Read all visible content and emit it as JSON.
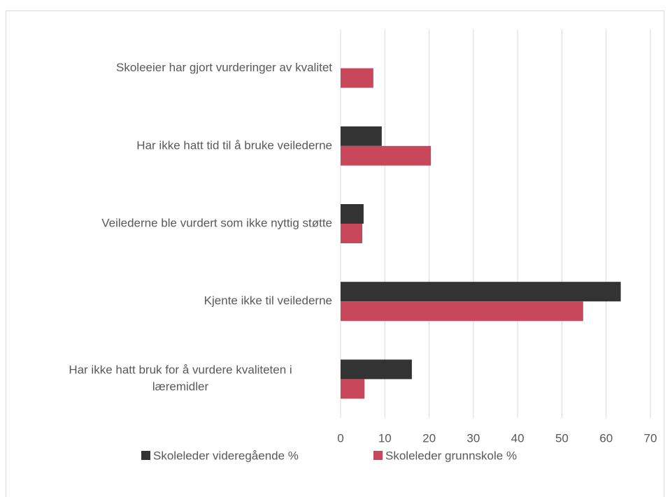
{
  "chart_data": {
    "type": "hbar",
    "categories": [
      "Skoleeier har gjort vurderinger av kvalitet",
      "Har ikke hatt tid til å bruke veilederne",
      "Veilederne ble vurdert som ikke nyttig støtte",
      "Kjente ikke til veilederne",
      "Har ikke hatt bruk for å vurdere kvaliteten i læremidler"
    ],
    "series": [
      {
        "name": "Skoleleder videregående  %",
        "color": "#333333",
        "values": [
          0,
          9.3,
          5.2,
          63.3,
          16.1
        ]
      },
      {
        "name": "Skoleleder grunnskole %",
        "color": "#c9475a",
        "values": [
          7.4,
          20.4,
          4.9,
          54.8,
          5.4
        ]
      }
    ],
    "xlim": [
      0,
      70
    ],
    "xticks": [
      0,
      10,
      20,
      30,
      40,
      50,
      60,
      70
    ],
    "grid": true,
    "legend": "bottom"
  }
}
